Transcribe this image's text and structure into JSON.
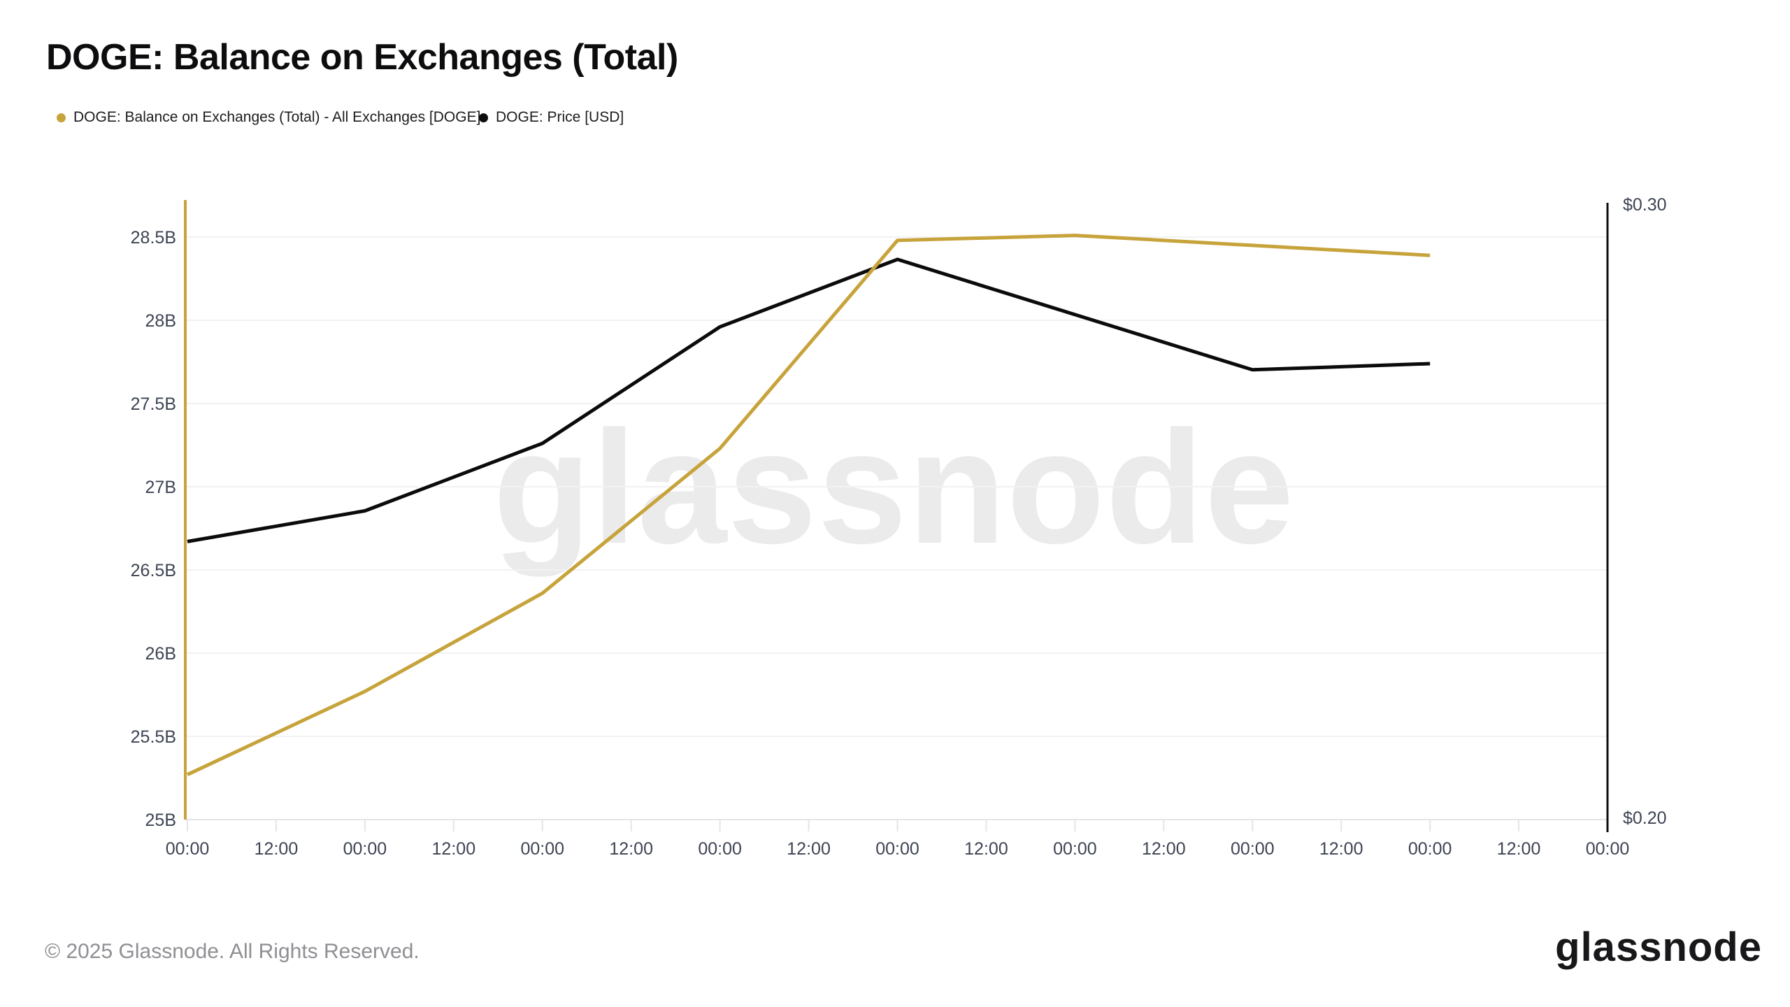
{
  "header": {
    "title": "DOGE: Balance on Exchanges (Total)"
  },
  "legend": {
    "items": [
      {
        "label": "DOGE: Balance on Exchanges (Total) - All Exchanges [DOGE]",
        "color": "#c7a33b"
      },
      {
        "label": "DOGE: Price [USD]",
        "color": "#0d0d0d"
      }
    ]
  },
  "watermark": {
    "text": "glassnode"
  },
  "footer": {
    "copyright": "© 2025 Glassnode. All Rights Reserved.",
    "logo_text": "glassnode"
  },
  "chart_data": {
    "type": "line",
    "title": "DOGE: Balance on Exchanges (Total)",
    "grid": "horizontal",
    "legend_position": "top-left",
    "x_axis": {
      "tick_labels": [
        "00:00",
        "12:00",
        "00:00",
        "12:00",
        "00:00",
        "12:00",
        "00:00",
        "12:00",
        "00:00",
        "12:00",
        "00:00",
        "12:00",
        "00:00",
        "12:00",
        "00:00",
        "12:00",
        "00:00"
      ],
      "series_point_tick_indices": [
        0,
        2,
        4,
        6,
        8,
        10,
        12,
        14
      ]
    },
    "left_axis": {
      "tick_labels": [
        "28.5B",
        "28B",
        "27.5B",
        "27B",
        "26.5B",
        "26B",
        "25.5B",
        "25B"
      ],
      "tick_values_billions": [
        28.5,
        28.0,
        27.5,
        27.0,
        26.5,
        26.0,
        25.5,
        25.0
      ],
      "min": 25.0,
      "max": 28.85,
      "axis_color": "#c7a33b"
    },
    "right_axis": {
      "tick_labels": [
        "$0.30",
        "$0.20"
      ],
      "top_value": 0.3,
      "bottom_value": 0.2,
      "axis_color": "#0d0d0d"
    },
    "series": [
      {
        "name": "DOGE: Balance on Exchanges (Total) - All Exchanges [DOGE]",
        "axis": "left",
        "unit": "DOGE, billions",
        "color": "#c7a33b",
        "values": [
          25.27,
          25.77,
          26.36,
          27.23,
          28.48,
          28.51,
          28.45,
          28.39
        ]
      },
      {
        "name": "DOGE: Price [USD]",
        "axis": "right",
        "unit": "USD",
        "color": "#0b0b0b",
        "values": [
          0.245,
          0.25,
          0.261,
          0.28,
          0.291,
          0.282,
          0.273,
          0.274
        ]
      }
    ]
  }
}
